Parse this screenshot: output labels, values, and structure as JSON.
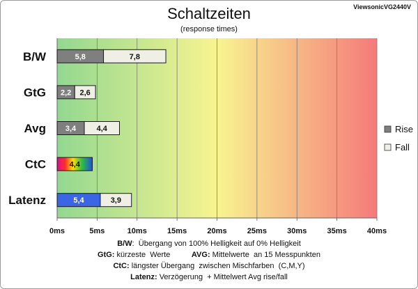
{
  "brand": "ViewsonicVG2440V",
  "chart_data": {
    "type": "bar",
    "stacked": true,
    "orientation": "horizontal",
    "title": "Schaltzeiten",
    "subtitle": "(response times)",
    "categories": [
      "B/W",
      "GtG",
      "Avg",
      "CtC",
      "Latenz"
    ],
    "series": [
      {
        "name": "Rise",
        "values": [
          5.8,
          2.2,
          3.4,
          4.4,
          5.4
        ],
        "labels": [
          "5,8",
          "2,2",
          "3,4",
          "4,4",
          "5,4"
        ]
      },
      {
        "name": "Fall",
        "values": [
          7.8,
          2.6,
          4.4,
          0,
          3.9
        ],
        "labels": [
          "7,8",
          "2,6",
          "4,4",
          "",
          "3,9"
        ]
      }
    ],
    "xlim": [
      0,
      40
    ],
    "xticks": [
      "0ms",
      "5ms",
      "10ms",
      "15ms",
      "20ms",
      "25ms",
      "30ms",
      "35ms",
      "40ms"
    ],
    "grid": "vertical",
    "legend": "right",
    "colors": {
      "rise": "#7f7f7f",
      "fall": "#efefe6",
      "latenz_rise": "#3a66e6",
      "bg_start": "#92d890",
      "bg_mid": "#f8f490",
      "bg_end": "#f57a7a"
    }
  },
  "notes": [
    [
      {
        "t": "B/W",
        "b": true
      },
      {
        "t": ":  Übergang von 100% Helligkeit auf 0% Helligkeit",
        "b": false
      }
    ],
    [
      {
        "t": "GtG:",
        "b": true
      },
      {
        "t": " kürzeste  Werte          ",
        "b": false
      },
      {
        "t": "AVG:",
        "b": true
      },
      {
        "t": " Mittelwerte  an 15 Messpunkten",
        "b": false
      }
    ],
    [
      {
        "t": "CtC:",
        "b": true
      },
      {
        "t": " längster Übergang  zwischen Mischfarben  (C,M,Y)",
        "b": false
      }
    ],
    [
      {
        "t": "Latenz:",
        "b": true
      },
      {
        "t": " Verzögerung  + Mittelwert Avg rise/fall",
        "b": false
      }
    ]
  ]
}
